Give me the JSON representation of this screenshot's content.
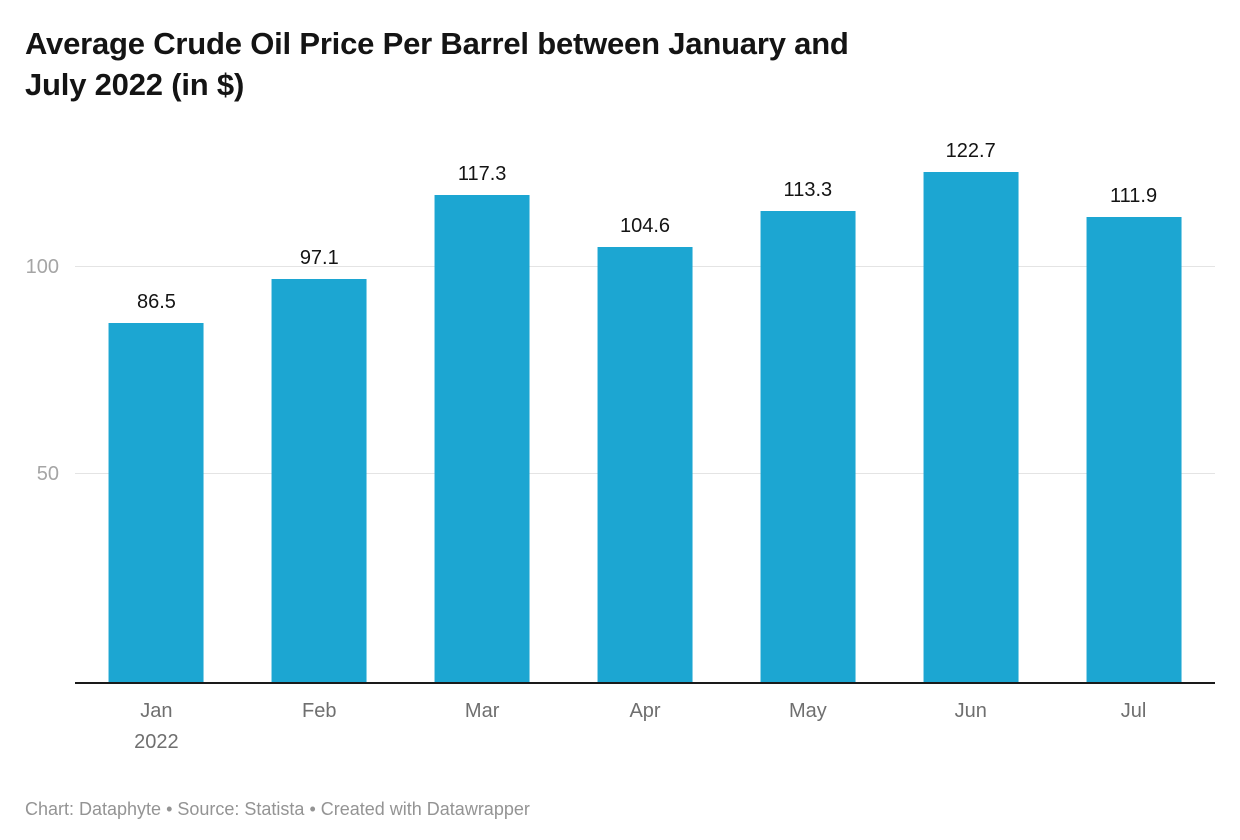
{
  "header": {
    "title_lines": [
      "Average Crude Oil Price Per Barrel between January and",
      "July 2022 (in $)"
    ]
  },
  "footer": {
    "text": "Chart: Dataphyte • Source: Statista • Created with Datawrapper"
  },
  "chart_data": {
    "type": "bar",
    "title": "Average Crude Oil Price Per Barrel between January and July 2022 (in $)",
    "categories": [
      "Jan",
      "Feb",
      "Mar",
      "Apr",
      "May",
      "Jun",
      "Jul"
    ],
    "x_axis_year_label": "2022",
    "values": [
      86.5,
      97.1,
      117.3,
      104.6,
      113.3,
      122.7,
      111.9
    ],
    "value_labels": [
      "86.5",
      "97.1",
      "117.3",
      "104.6",
      "113.3",
      "122.7",
      "111.9"
    ],
    "xlabel": "",
    "ylabel": "",
    "ylim": [
      0,
      131
    ],
    "yticks": [
      50,
      100
    ],
    "grid": true,
    "legend": false,
    "bar_color": "#1ca6d2",
    "axis_line_color": "#1a1a1a",
    "source_note": "Chart: Dataphyte • Source: Statista • Created with Datawrapper"
  }
}
